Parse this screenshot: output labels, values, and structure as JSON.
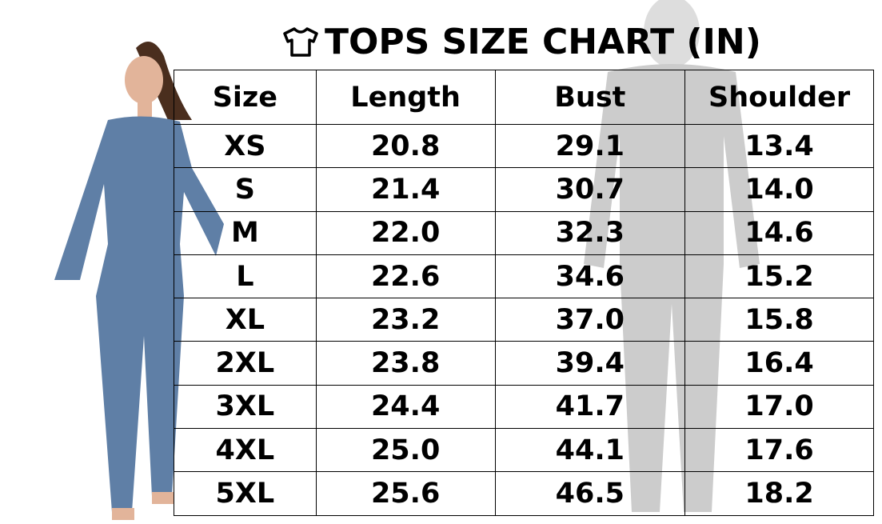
{
  "title": "TOPS SIZE CHART (IN)",
  "title_icon": "t-shirt-icon",
  "colors": {
    "garment": "#5f7fa6",
    "text": "#000000",
    "border": "#000000"
  },
  "table": {
    "headers": [
      "Size",
      "Length",
      "Bust",
      "Shoulder"
    ],
    "rows": [
      [
        "XS",
        "20.8",
        "29.1",
        "13.4"
      ],
      [
        "S",
        "21.4",
        "30.7",
        "14.0"
      ],
      [
        "M",
        "22.0",
        "32.3",
        "14.6"
      ],
      [
        "L",
        "22.6",
        "34.6",
        "15.2"
      ],
      [
        "XL",
        "23.2",
        "37.0",
        "15.8"
      ],
      [
        "2XL",
        "23.8",
        "39.4",
        "16.4"
      ],
      [
        "3XL",
        "24.4",
        "41.7",
        "17.0"
      ],
      [
        "4XL",
        "25.0",
        "44.1",
        "17.6"
      ],
      [
        "5XL",
        "25.6",
        "46.5",
        "18.2"
      ]
    ]
  }
}
